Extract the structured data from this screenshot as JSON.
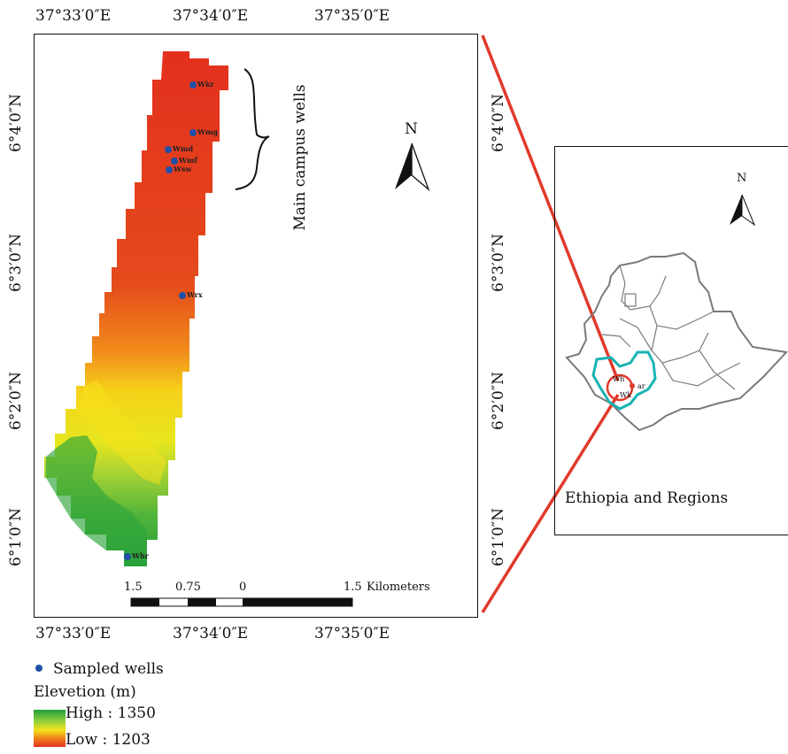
{
  "main_map": {
    "top_lon_ticks": [
      "37°33′0″E",
      "37°34′0″E",
      "37°35′0″E"
    ],
    "bottom_lon_ticks": [
      "37°33′0″E",
      "37°34′0″E",
      "37°35′0″E"
    ],
    "left_lat_ticks": [
      "6°4′0″N",
      "6°3′0″N",
      "6°2′0″N",
      "6°1′0″N"
    ],
    "right_lat_ticks": [
      "6°4′0″N",
      "6°3′0″N",
      "6°2′0″N",
      "6°1′0″N"
    ],
    "north_label": "N",
    "annotation": "Main campus wells",
    "scale_bar": {
      "labels": [
        "1.5",
        "0.75",
        "0",
        "1.5"
      ],
      "unit": "Kilometers"
    },
    "wells": [
      {
        "code": "Wkr"
      },
      {
        "code": "Wmg"
      },
      {
        "code": "Wmd"
      },
      {
        "code": "Wmf"
      },
      {
        "code": "Wsw"
      },
      {
        "code": "Wrx"
      },
      {
        "code": "Whr"
      }
    ]
  },
  "inset_map": {
    "north_label": "N",
    "title": "Ethiopia and Regions",
    "point_labels": [
      "Wh",
      "ar",
      "Wk"
    ]
  },
  "legend": {
    "sampled_wells_label": "Sampled wells",
    "elevation_title": "Elevetion (m)",
    "high_label": "High : 1350",
    "low_label": "Low : 1203",
    "colors": {
      "high": "#1e9e3a",
      "mid": "#f2e51a",
      "low": "#e3301e"
    }
  },
  "colors": {
    "well_marker": "#1f4fa8",
    "inset_region": "#19b3b3",
    "connector": "#e03a2a",
    "boundary": "#7a7a7a"
  }
}
